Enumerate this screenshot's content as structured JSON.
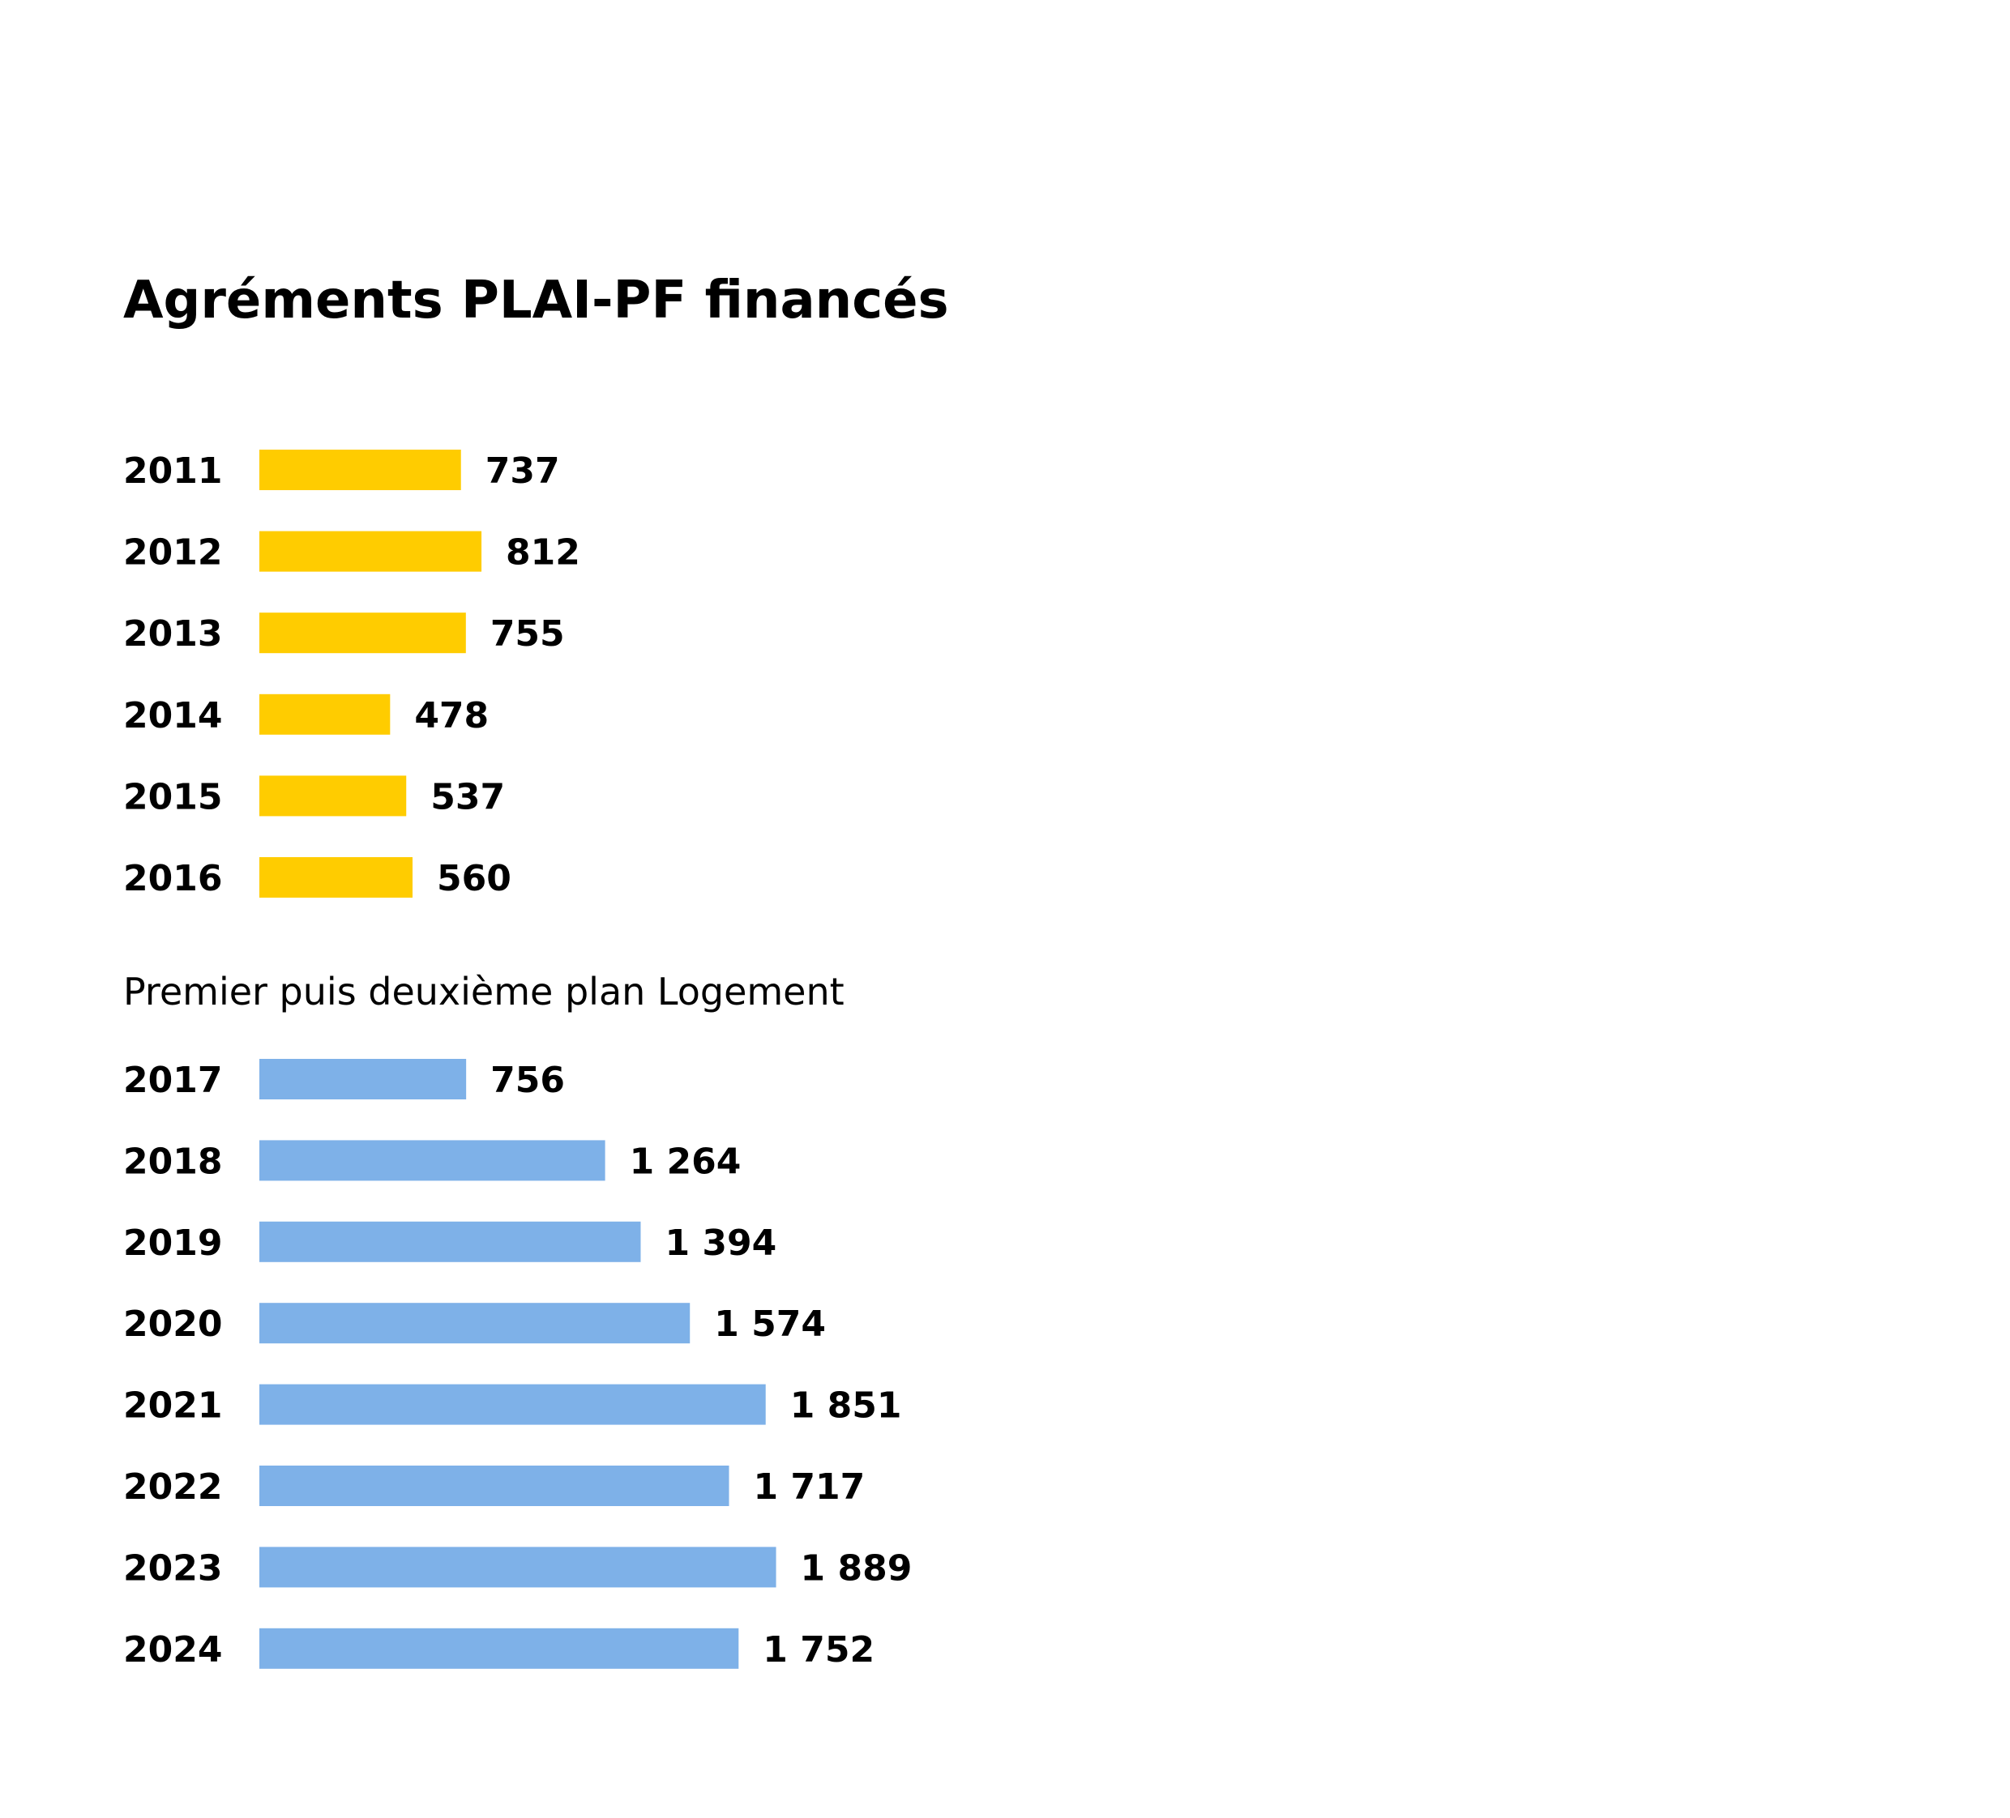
{
  "chart_data": {
    "type": "bar",
    "orientation": "horizontal",
    "title": "Agréments PLAI-PF financés",
    "groups": [
      {
        "label": "",
        "color": "#ffcc00",
        "categories": [
          "2011",
          "2012",
          "2013",
          "2014",
          "2015",
          "2016"
        ],
        "values": [
          737,
          812,
          755,
          478,
          537,
          560
        ],
        "value_labels": [
          "737",
          "812",
          "755",
          "478",
          "537",
          "560"
        ]
      },
      {
        "label": "Premier puis deuxième plan Logement",
        "color": "#7eb1e8",
        "categories": [
          "2017",
          "2018",
          "2019",
          "2020",
          "2021",
          "2022",
          "2023",
          "2024"
        ],
        "values": [
          756,
          1264,
          1394,
          1574,
          1851,
          1717,
          1889,
          1752
        ],
        "value_labels": [
          "756",
          "1 264",
          "1 394",
          "1 574",
          "1 851",
          "1 717",
          "1 889",
          "1 752"
        ]
      }
    ],
    "grid": false,
    "legend": "none"
  }
}
